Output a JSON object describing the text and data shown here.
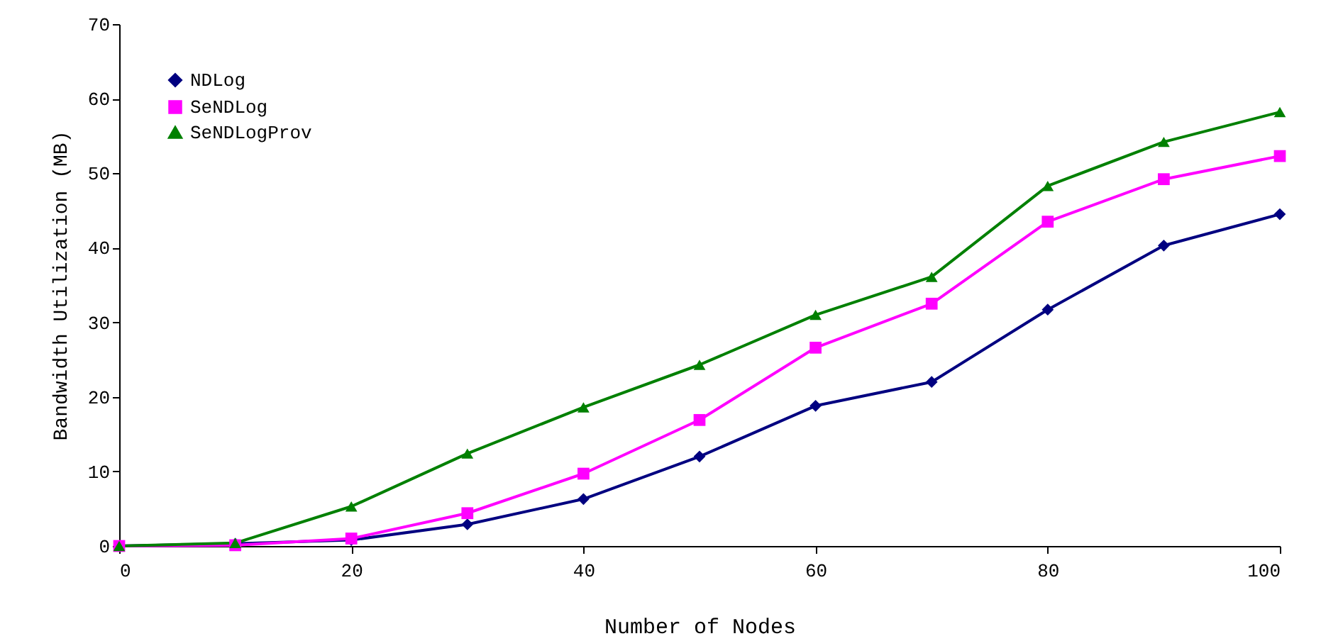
{
  "chart_data": {
    "type": "line",
    "xlabel": "Number of Nodes",
    "ylabel": "Bandwidth Utilization (MB)",
    "x": [
      0,
      10,
      20,
      30,
      40,
      50,
      60,
      70,
      80,
      90,
      100
    ],
    "series": [
      {
        "name": "NDLog",
        "color": "#000080",
        "marker": "diamond",
        "values": [
          0,
          0.3,
          0.8,
          2.9,
          6.3,
          12.0,
          18.8,
          22.0,
          31.7,
          40.3,
          44.5
        ]
      },
      {
        "name": "SeNDLog",
        "color": "#ff00ff",
        "marker": "square",
        "values": [
          0,
          0.1,
          1.0,
          4.4,
          9.7,
          16.9,
          26.6,
          32.5,
          43.5,
          49.2,
          52.3
        ]
      },
      {
        "name": "SeNDLogProv",
        "color": "#008000",
        "marker": "triangle",
        "values": [
          0,
          0.4,
          5.3,
          12.4,
          18.6,
          24.3,
          31.0,
          36.1,
          48.3,
          54.2,
          58.2
        ]
      }
    ],
    "xlim": [
      0,
      100
    ],
    "xticks": [
      0,
      20,
      40,
      60,
      80,
      100
    ],
    "ylim": [
      0,
      70
    ],
    "yticks": [
      0,
      10,
      20,
      30,
      40,
      50,
      60,
      70
    ],
    "legend": "top left",
    "grid": false,
    "line_style": "solid"
  }
}
